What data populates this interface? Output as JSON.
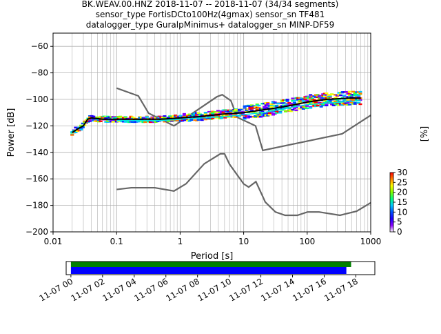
{
  "header": {
    "title_line1": "BK.WEAV.00.HNZ   2018-11-07 -- 2018-11-07  (34/34 segments)",
    "title_line2": "sensor_type FortisDCto100Hz(4gmax) sensor_sn TF481",
    "title_line3": "datalogger_type GuralpMinimus+ datalogger_sn MINP-DF59"
  },
  "chart_data": [
    {
      "type": "heatmap",
      "xlabel": "Period [s]",
      "ylabel": "Power [dB]",
      "xscale": "log",
      "xlim": [
        0.01,
        1000
      ],
      "ylim": [
        -200,
        -50
      ],
      "grid": true,
      "x_tick_labels": [
        "0.01",
        "0.1",
        "1",
        "10",
        "100",
        "1000"
      ],
      "y_tick_labels": [
        "−60",
        "−80",
        "−100",
        "−120",
        "−140",
        "−160",
        "−180",
        "−200"
      ],
      "y_ticks": [
        -60,
        -80,
        -100,
        -120,
        -140,
        -160,
        -180,
        -200
      ],
      "x_ticks": [
        0.01,
        0.1,
        1,
        10,
        100,
        1000
      ],
      "colorbar": {
        "label": "[%]",
        "range": [
          0,
          30
        ],
        "tick_labels": [
          "0",
          "5",
          "10",
          "15",
          "20",
          "25",
          "30"
        ],
        "ticks": [
          0,
          5,
          10,
          15,
          20,
          25,
          30
        ],
        "colormap": [
          "#ffffff",
          "#8a00ff",
          "#1a00ff",
          "#0050ff",
          "#00c8ff",
          "#00ff80",
          "#80ff00",
          "#ffff00",
          "#ff8000",
          "#ff0000"
        ]
      },
      "noise_models": [
        {
          "name": "NHNM",
          "color": "#666666",
          "x": [
            0.1,
            0.22,
            0.32,
            0.8,
            3.8,
            4.6,
            6.3,
            7.9,
            15.4,
            20,
            354.8,
            1000
          ],
          "y": [
            -91.5,
            -97.4,
            -110.5,
            -120,
            -98,
            -96.5,
            -101,
            -113.5,
            -120,
            -138.5,
            -126,
            -112
          ]
        },
        {
          "name": "NLNM",
          "color": "#666666",
          "x": [
            0.1,
            0.17,
            0.4,
            0.8,
            1.24,
            2.4,
            4.3,
            5,
            6,
            10,
            12,
            15.6,
            21.9,
            31.6,
            45,
            70,
            101,
            154,
            328,
            600,
            1000
          ],
          "y": [
            -168,
            -166.7,
            -166.7,
            -169.2,
            -163.7,
            -148.6,
            -141.1,
            -141.1,
            -149,
            -163.8,
            -166.2,
            -162.1,
            -177.5,
            -185,
            -187.5,
            -187.5,
            -185,
            -185,
            -187.5,
            -184.4,
            -178
          ]
        }
      ],
      "mean_curve": {
        "color": "#000000",
        "x": [
          0.02,
          0.025,
          0.03,
          0.035,
          0.04,
          0.06,
          0.1,
          0.2,
          0.5,
          1,
          2,
          5,
          10,
          20,
          50,
          100,
          200,
          500,
          700
        ],
        "y": [
          -125,
          -122,
          -120,
          -115,
          -114,
          -115,
          -115,
          -115,
          -115,
          -114,
          -113,
          -111,
          -110,
          -108,
          -105,
          -102,
          -100,
          -99,
          -99
        ]
      },
      "mode_curve": {
        "color": "#00e0e0",
        "x": [
          0.1,
          0.5,
          1,
          5,
          20,
          100,
          700
        ],
        "y": [
          -116,
          -116,
          -115,
          -113,
          -110,
          -104,
          -101
        ]
      },
      "timeline": {
        "x_tick_labels": [
          "11-07 00",
          "11-07 02",
          "11-07 04",
          "11-07 06",
          "11-07 08",
          "11-07 10",
          "11-07 12",
          "11-07 14",
          "11-07 16",
          "11-07 18"
        ],
        "hours": [
          0,
          2,
          4,
          6,
          8,
          10,
          12,
          14,
          16,
          18
        ],
        "xlim_hours": [
          -0.3,
          19.2
        ],
        "data_span_hours": [
          0,
          17.7
        ],
        "segments_span_hours": [
          0,
          17.4
        ],
        "data_color": "#008000",
        "segments_color": "#0000ff"
      }
    }
  ]
}
